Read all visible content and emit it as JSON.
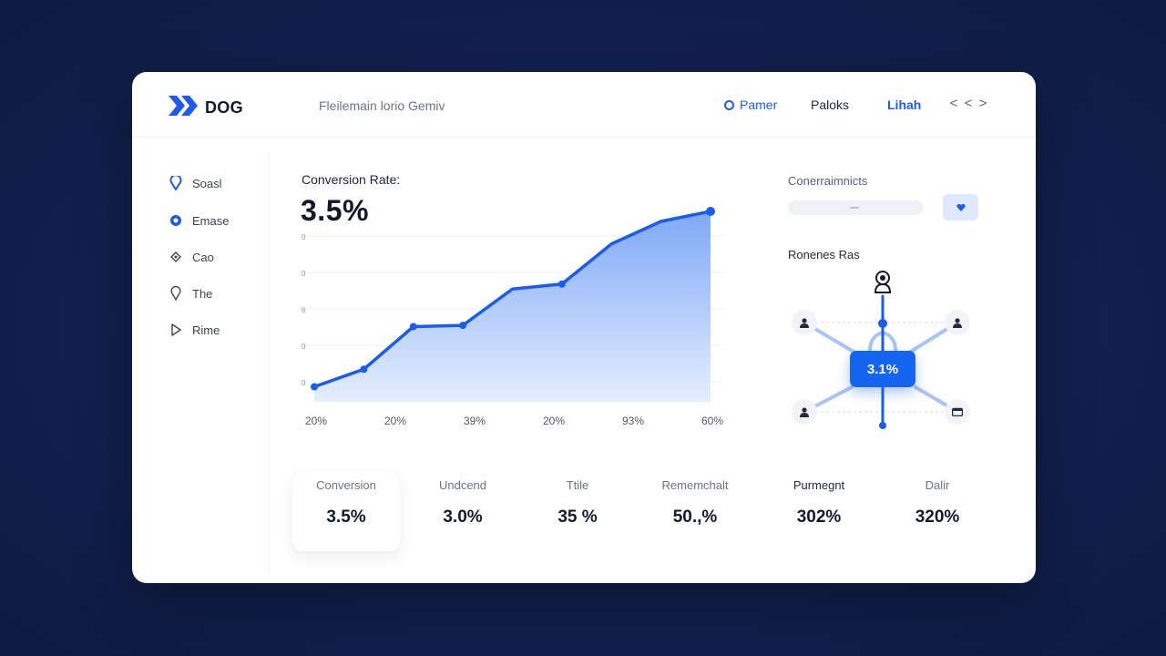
{
  "brand": {
    "name": "DOG",
    "accent": "#1c5ce6"
  },
  "header": {
    "breadcrumb": "Fleilemain lorio  Gemiv",
    "nav": [
      "Pamer",
      "Paloks",
      "Lihah"
    ],
    "pager": [
      "<",
      "<",
      ">"
    ]
  },
  "sidebar": {
    "items": [
      {
        "label": "Soasl",
        "icon": "pin-icon"
      },
      {
        "label": "Emase",
        "icon": "record-icon"
      },
      {
        "label": "Cao",
        "icon": "diamond-icon"
      },
      {
        "label": "The",
        "icon": "drop-icon"
      },
      {
        "label": "Rime",
        "icon": "play-icon"
      }
    ]
  },
  "chart": {
    "title": "Conversion Rate:",
    "value": "3.5%",
    "y_ticks": [
      "0",
      "0",
      "6",
      "0",
      "0"
    ],
    "x_ticks": [
      "20%",
      "20%",
      "39%",
      "20%",
      "93%",
      "60%"
    ]
  },
  "chart_data": {
    "type": "area",
    "title": "Conversion Rate:",
    "x": [
      0,
      1,
      2,
      3,
      4,
      5,
      6,
      7,
      8
    ],
    "values": [
      0.6,
      1.3,
      3.0,
      3.05,
      4.5,
      4.7,
      6.3,
      7.2,
      7.6
    ],
    "ylim": [
      0,
      8
    ],
    "grid": true,
    "color": "#1c5ce6"
  },
  "panel": {
    "title": "Conerraimnicts",
    "subtitle": "Ronenes Ras",
    "badge": "3.1%",
    "accent": "#1565f0"
  },
  "stats": [
    {
      "label": "Conversion",
      "value": "3.5%"
    },
    {
      "label": "Undcend",
      "value": "3.0%"
    },
    {
      "label": "Ttile",
      "value": "35 %"
    },
    {
      "label": "Rememchalt",
      "value": "50.,%"
    },
    {
      "label": "Purmegnt",
      "value": "302%"
    },
    {
      "label": "Dalir",
      "value": "320%"
    }
  ]
}
